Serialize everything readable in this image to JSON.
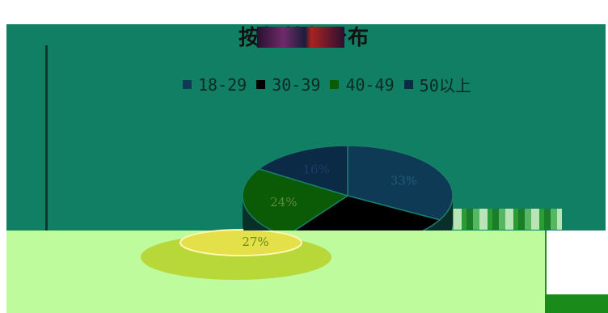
{
  "chart_data": {
    "type": "pie",
    "title": "按年龄段分布",
    "categories": [
      "18-29",
      "30-39",
      "40-49",
      "50以上"
    ],
    "values": [
      33,
      27,
      24,
      16
    ],
    "labels": [
      "33%",
      "27%",
      "24%",
      "16%"
    ],
    "colors": [
      "#0f3a55",
      "#000000",
      "#0b5a06",
      "#0b2a45"
    ],
    "legend_position": "top",
    "three_d": true
  },
  "colors": {
    "band": "#107f63",
    "lower_band": "#bdfb9d",
    "highlight_slice": "#e3e04a"
  }
}
